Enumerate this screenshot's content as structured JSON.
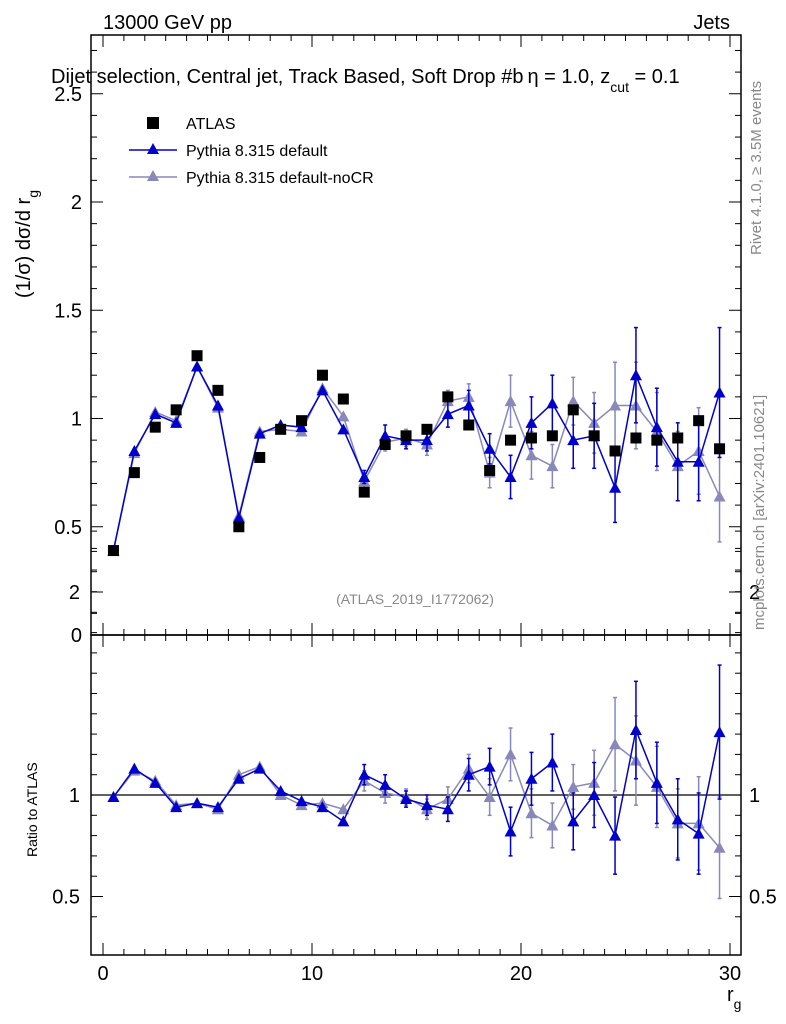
{
  "header": {
    "left": "13000 GeV pp",
    "right": "Jets",
    "subtitle": "Dijet selection, Central jet, Track Based, Soft Drop #b",
    "subtitle_params": "η = 1.0, z",
    "subtitle_sub": "cut",
    "subtitle_end": " = 0.1"
  },
  "side_text": {
    "rivet": "Rivet 4.1.0, ≥ 3.5M events",
    "mcplots": "mcplots.cern.ch [arXiv:2401.10621]"
  },
  "watermark": "(ATLAS_2019_I1772062)",
  "chart_data": {
    "type": "scatter",
    "xlabel": "r",
    "xlabel_sub": "g",
    "ylabel": "(1/σ) dσ/d r",
    "ylabel_sub": "g",
    "ratio_ylabel": "Ratio to ATLAS",
    "xlim": [
      0,
      30
    ],
    "ylim": [
      0,
      2.75
    ],
    "ratio_ylim": [
      0.35,
      2.35
    ],
    "xticks": [
      "0",
      "10",
      "20",
      "30"
    ],
    "yticks": [
      "0",
      "0.5",
      "1",
      "1.5",
      "2",
      "2.5"
    ],
    "ratio_yticks": [
      "0.5",
      "1",
      "2"
    ],
    "x": [
      0.5,
      1.5,
      2.5,
      3.5,
      4.5,
      5.5,
      6.5,
      7.5,
      8.5,
      9.5,
      10.5,
      11.5,
      12.5,
      13.5,
      14.5,
      15.5,
      16.5,
      17.5,
      18.5,
      19.5,
      20.5,
      21.5,
      22.5,
      23.5,
      24.5,
      25.5,
      26.5,
      27.5,
      28.5,
      29.5
    ],
    "series": [
      {
        "name": "ATLAS",
        "color": "#000000",
        "marker": "square",
        "values": [
          0.39,
          0.75,
          0.96,
          1.04,
          1.29,
          1.13,
          0.5,
          0.82,
          0.95,
          0.99,
          1.2,
          1.09,
          0.66,
          0.88,
          0.92,
          0.95,
          1.1,
          0.97,
          0.76,
          0.9,
          0.91,
          0.92,
          1.04,
          0.92,
          0.85,
          0.91,
          0.9,
          0.91,
          0.99,
          0.86
        ]
      },
      {
        "name": "Pythia 8.315 default",
        "color": "#0000cc",
        "marker": "triangle",
        "values": [
          0.39,
          0.85,
          1.02,
          0.98,
          1.24,
          1.06,
          0.54,
          0.93,
          0.97,
          0.96,
          1.13,
          0.95,
          0.73,
          0.92,
          0.9,
          0.9,
          1.02,
          1.06,
          0.86,
          0.73,
          0.98,
          1.07,
          0.9,
          0.92,
          0.68,
          1.2,
          0.96,
          0.8,
          0.8,
          1.12
        ],
        "errors": [
          0.01,
          0.01,
          0.01,
          0.01,
          0.01,
          0.01,
          0.01,
          0.01,
          0.02,
          0.02,
          0.02,
          0.02,
          0.03,
          0.05,
          0.04,
          0.05,
          0.06,
          0.07,
          0.07,
          0.1,
          0.12,
          0.13,
          0.13,
          0.15,
          0.16,
          0.22,
          0.18,
          0.18,
          0.18,
          0.3
        ],
        "ratio": [
          0.99,
          1.13,
          1.06,
          0.94,
          0.96,
          0.94,
          1.08,
          1.13,
          1.02,
          0.97,
          0.94,
          0.87,
          1.1,
          1.05,
          0.98,
          0.95,
          0.93,
          1.1,
          1.14,
          0.82,
          1.08,
          1.16,
          0.87,
          1.0,
          0.8,
          1.32,
          1.06,
          0.88,
          0.81,
          1.31
        ],
        "ratio_errors": [
          0.01,
          0.01,
          0.01,
          0.01,
          0.01,
          0.01,
          0.02,
          0.02,
          0.02,
          0.02,
          0.02,
          0.02,
          0.05,
          0.05,
          0.04,
          0.05,
          0.06,
          0.08,
          0.09,
          0.12,
          0.13,
          0.14,
          0.14,
          0.16,
          0.19,
          0.24,
          0.2,
          0.2,
          0.2,
          0.33
        ]
      },
      {
        "name": "Pythia 8.315 default-noCR",
        "color": "#8888bb",
        "marker": "triangle",
        "values": [
          0.39,
          0.84,
          1.03,
          0.99,
          1.24,
          1.05,
          0.55,
          0.94,
          0.95,
          0.94,
          1.14,
          1.01,
          0.71,
          0.89,
          0.91,
          0.88,
          1.08,
          1.1,
          0.75,
          1.08,
          0.83,
          0.78,
          1.08,
          0.98,
          1.06,
          1.06,
          0.94,
          0.78,
          0.85,
          0.64
        ],
        "errors": [
          0.01,
          0.01,
          0.01,
          0.01,
          0.01,
          0.01,
          0.01,
          0.01,
          0.02,
          0.02,
          0.02,
          0.02,
          0.04,
          0.04,
          0.04,
          0.05,
          0.05,
          0.06,
          0.07,
          0.12,
          0.11,
          0.1,
          0.11,
          0.14,
          0.2,
          0.2,
          0.18,
          0.16,
          0.2,
          0.21
        ],
        "ratio": [
          0.99,
          1.12,
          1.07,
          0.95,
          0.96,
          0.93,
          1.1,
          1.14,
          1.0,
          0.95,
          0.96,
          0.93,
          1.07,
          1.01,
          0.99,
          0.93,
          0.98,
          1.13,
          0.99,
          1.2,
          0.91,
          0.85,
          1.04,
          1.06,
          1.25,
          1.17,
          1.04,
          0.86,
          0.86,
          0.74
        ],
        "ratio_errors": [
          0.01,
          0.01,
          0.01,
          0.01,
          0.01,
          0.01,
          0.02,
          0.02,
          0.02,
          0.02,
          0.02,
          0.02,
          0.05,
          0.05,
          0.04,
          0.05,
          0.06,
          0.07,
          0.09,
          0.13,
          0.12,
          0.11,
          0.11,
          0.16,
          0.23,
          0.22,
          0.2,
          0.17,
          0.23,
          0.25
        ]
      }
    ]
  }
}
